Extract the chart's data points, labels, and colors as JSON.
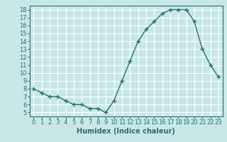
{
  "x": [
    0,
    1,
    2,
    3,
    4,
    5,
    6,
    7,
    8,
    9,
    10,
    11,
    12,
    13,
    14,
    15,
    16,
    17,
    18,
    19,
    20,
    21,
    22,
    23
  ],
  "y": [
    8,
    7.5,
    7,
    7,
    6.5,
    6,
    6,
    5.5,
    5.5,
    5,
    6.5,
    9,
    11.5,
    14,
    15.5,
    16.5,
    17.5,
    18,
    18,
    18,
    16.5,
    13,
    11,
    9.5
  ],
  "line_color": "#2d6e6e",
  "marker": "+",
  "bg_color": "#c8e8e8",
  "grid_color": "#ffffff",
  "xlabel": "Humidex (Indice chaleur)",
  "xlim": [
    -0.5,
    23.5
  ],
  "ylim": [
    4.5,
    18.5
  ],
  "yticks": [
    5,
    6,
    7,
    8,
    9,
    10,
    11,
    12,
    13,
    14,
    15,
    16,
    17,
    18
  ],
  "xticks": [
    0,
    1,
    2,
    3,
    4,
    5,
    6,
    7,
    8,
    9,
    10,
    11,
    12,
    13,
    14,
    15,
    16,
    17,
    18,
    19,
    20,
    21,
    22,
    23
  ],
  "tick_color": "#2d6e6e",
  "label_fontsize": 7,
  "tick_fontsize": 6
}
